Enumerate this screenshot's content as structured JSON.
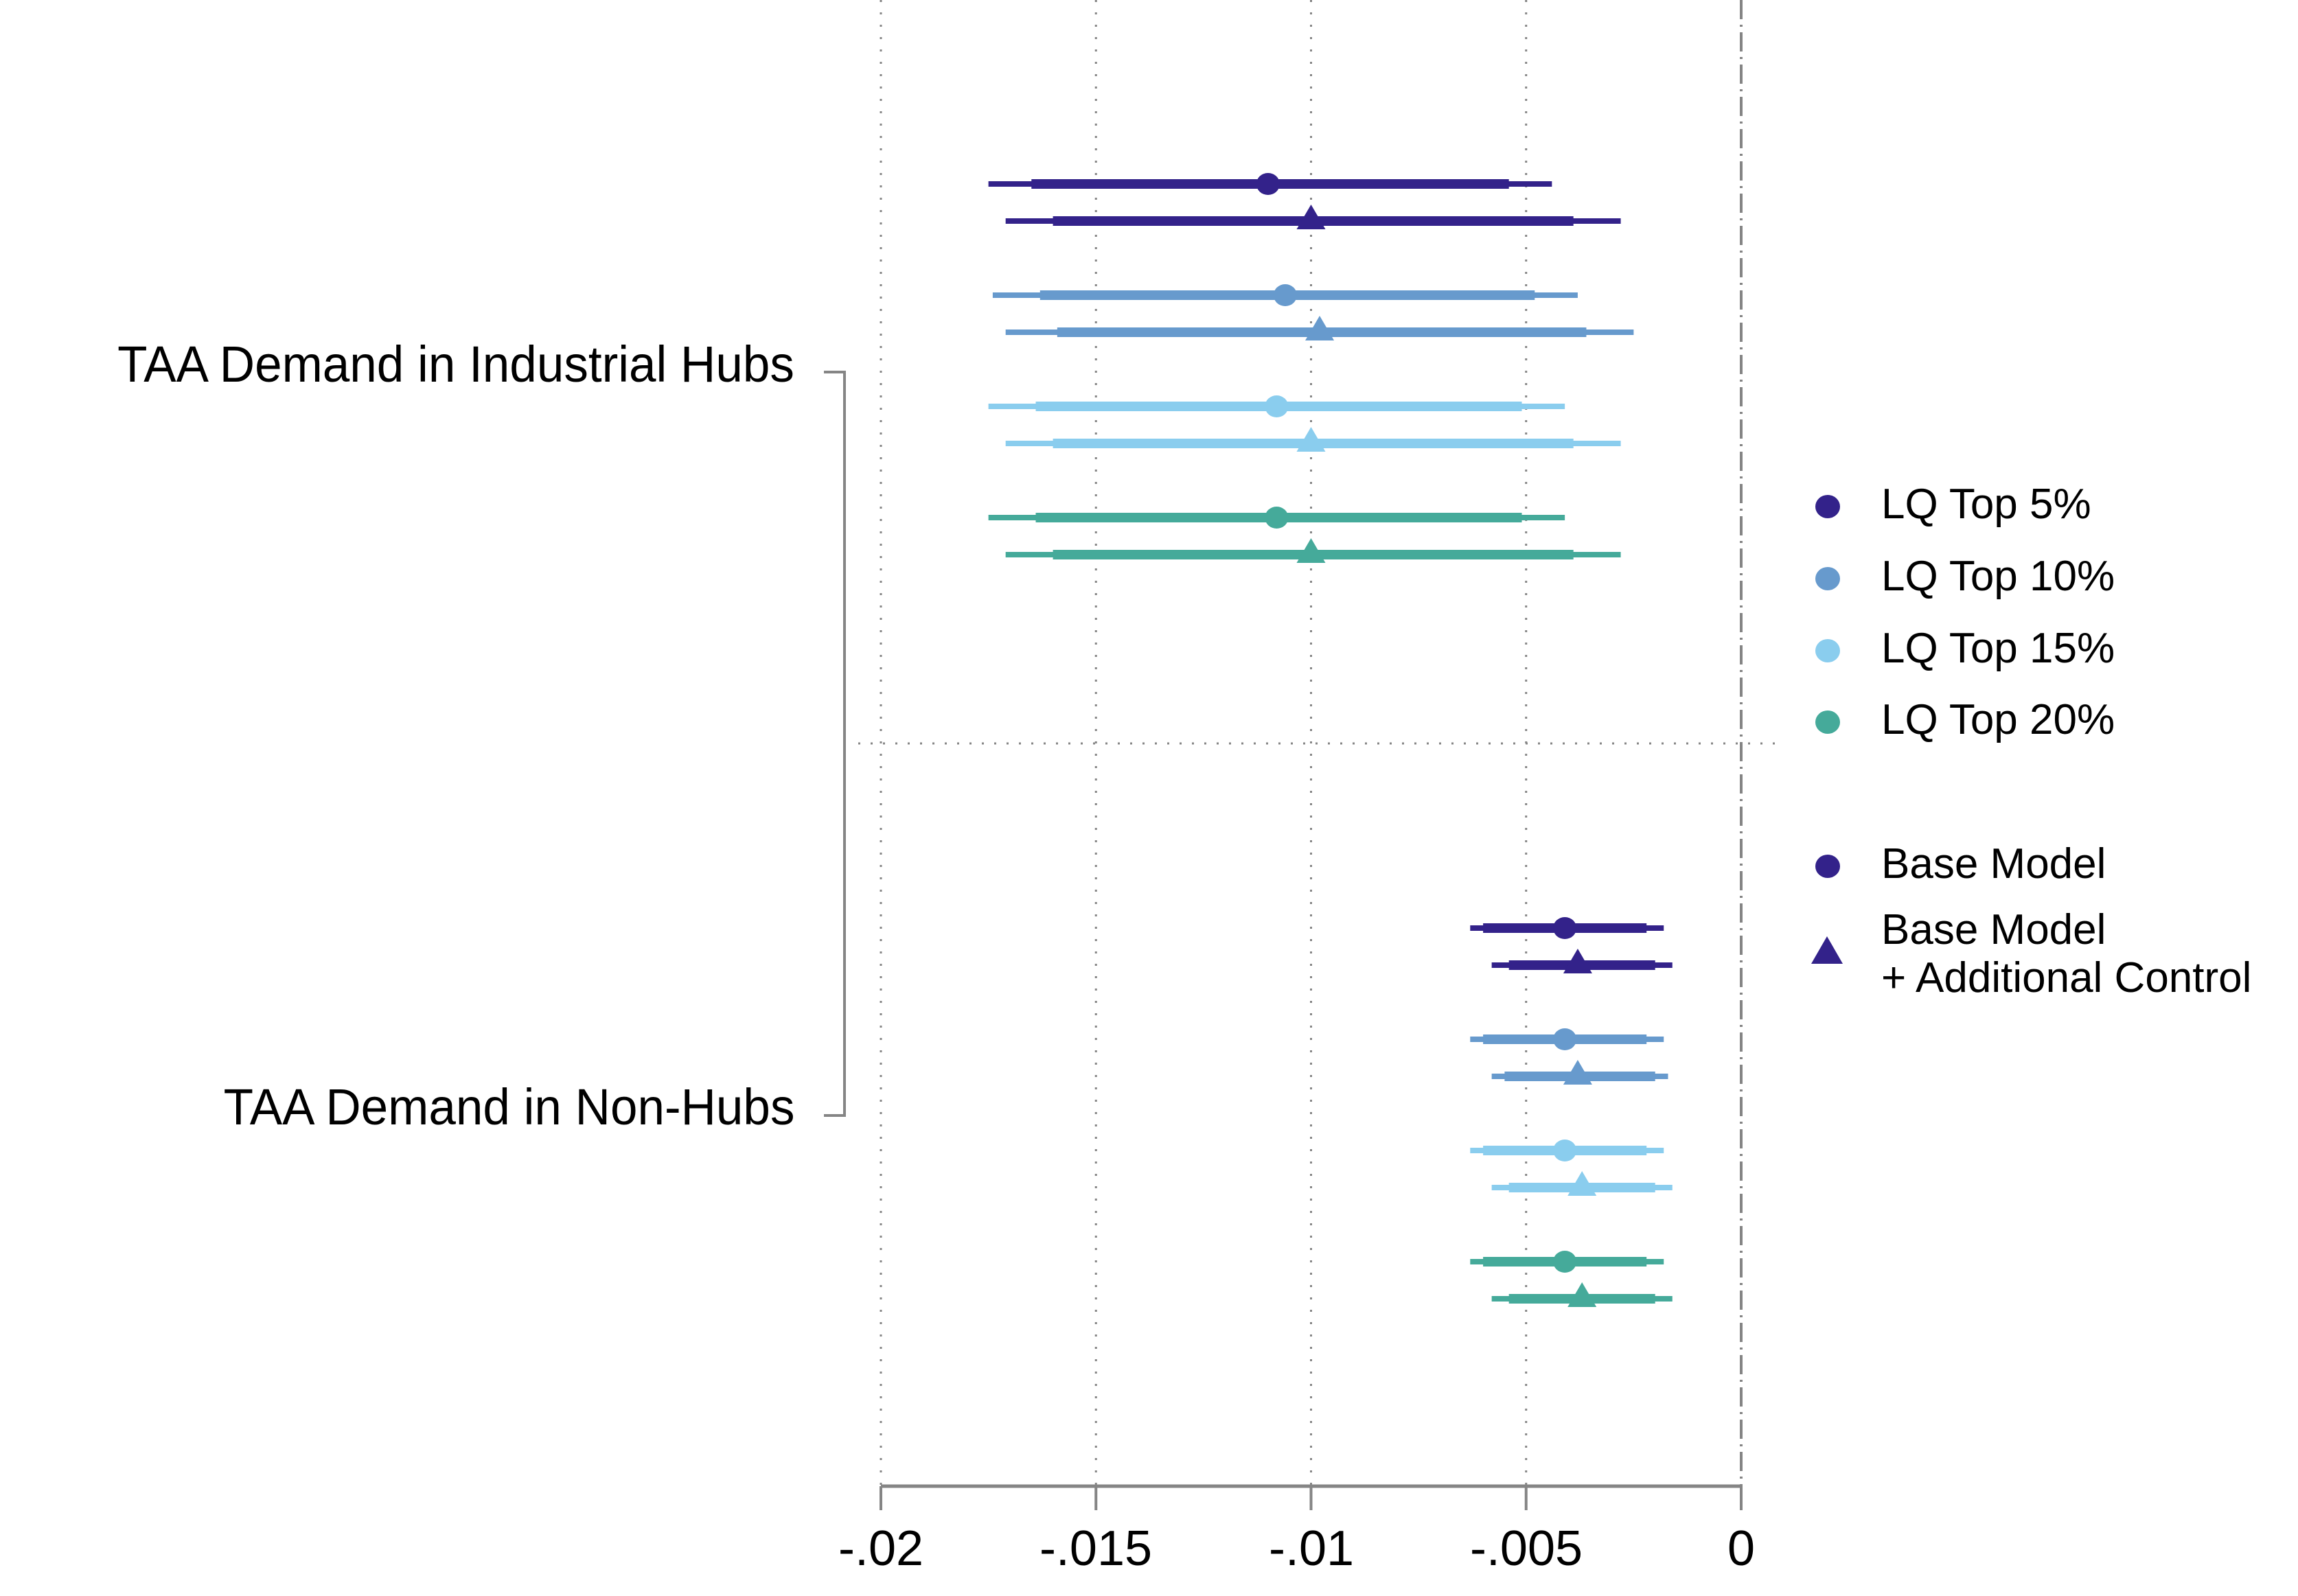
{
  "chart_data": {
    "type": "coefficient-plot",
    "title": "",
    "xlabel": "",
    "ylabel": "",
    "xlim": [
      -0.02,
      0.0
    ],
    "x_ticks": [
      -0.02,
      -0.015,
      -0.01,
      -0.005,
      0
    ],
    "x_tick_labels": [
      "-.02",
      "-.015",
      "-.01",
      "-.005",
      "0"
    ],
    "grid": "vertical dotted at ticks; dash-dot reference line at 0; horizontal dotted separator between groups",
    "legend_position": "right",
    "groups": [
      {
        "label": "TAA Demand in Industrial Hubs",
        "estimates": [
          {
            "series": "LQ Top 5%",
            "model": "Base Model",
            "coef": -0.011,
            "ci90": [
              -0.0165,
              -0.0054
            ],
            "ci95": [
              -0.0175,
              -0.0044
            ]
          },
          {
            "series": "LQ Top 5%",
            "model": "Base Model + Additional Control",
            "coef": -0.01,
            "ci90": [
              -0.016,
              -0.0039
            ],
            "ci95": [
              -0.0171,
              -0.0028
            ]
          },
          {
            "series": "LQ Top 10%",
            "model": "Base Model",
            "coef": -0.0106,
            "ci90": [
              -0.0163,
              -0.0048
            ],
            "ci95": [
              -0.0174,
              -0.0038
            ]
          },
          {
            "series": "LQ Top 10%",
            "model": "Base Model + Additional Control",
            "coef": -0.0098,
            "ci90": [
              -0.0159,
              -0.0036
            ],
            "ci95": [
              -0.0171,
              -0.0025
            ]
          },
          {
            "series": "LQ Top 15%",
            "model": "Base Model",
            "coef": -0.0108,
            "ci90": [
              -0.0164,
              -0.0051
            ],
            "ci95": [
              -0.0175,
              -0.0041
            ]
          },
          {
            "series": "LQ Top 15%",
            "model": "Base Model + Additional Control",
            "coef": -0.01,
            "ci90": [
              -0.016,
              -0.0039
            ],
            "ci95": [
              -0.0171,
              -0.0028
            ]
          },
          {
            "series": "LQ Top 20%",
            "model": "Base Model",
            "coef": -0.0108,
            "ci90": [
              -0.0164,
              -0.0051
            ],
            "ci95": [
              -0.0175,
              -0.0041
            ]
          },
          {
            "series": "LQ Top 20%",
            "model": "Base Model + Additional Control",
            "coef": -0.01,
            "ci90": [
              -0.016,
              -0.0039
            ],
            "ci95": [
              -0.0171,
              -0.0028
            ]
          }
        ]
      },
      {
        "label": "TAA Demand in Non-Hubs",
        "estimates": [
          {
            "series": "LQ Top 5%",
            "model": "Base Model",
            "coef": -0.0041,
            "ci90": [
              -0.006,
              -0.0022
            ],
            "ci95": [
              -0.0063,
              -0.0018
            ]
          },
          {
            "series": "LQ Top 5%",
            "model": "Base Model + Additional Control",
            "coef": -0.0038,
            "ci90": [
              -0.0054,
              -0.002
            ],
            "ci95": [
              -0.0058,
              -0.0016
            ]
          },
          {
            "series": "LQ Top 10%",
            "model": "Base Model",
            "coef": -0.0041,
            "ci90": [
              -0.006,
              -0.0022
            ],
            "ci95": [
              -0.0063,
              -0.0018
            ]
          },
          {
            "series": "LQ Top 10%",
            "model": "Base Model + Additional Control",
            "coef": -0.0038,
            "ci90": [
              -0.0055,
              -0.002
            ],
            "ci95": [
              -0.0058,
              -0.0017
            ]
          },
          {
            "series": "LQ Top 15%",
            "model": "Base Model",
            "coef": -0.0041,
            "ci90": [
              -0.006,
              -0.0022
            ],
            "ci95": [
              -0.0063,
              -0.0018
            ]
          },
          {
            "series": "LQ Top 15%",
            "model": "Base Model + Additional Control",
            "coef": -0.0037,
            "ci90": [
              -0.0054,
              -0.002
            ],
            "ci95": [
              -0.0058,
              -0.0016
            ]
          },
          {
            "series": "LQ Top 20%",
            "model": "Base Model",
            "coef": -0.0041,
            "ci90": [
              -0.006,
              -0.0022
            ],
            "ci95": [
              -0.0063,
              -0.0018
            ]
          },
          {
            "series": "LQ Top 20%",
            "model": "Base Model + Additional Control",
            "coef": -0.0037,
            "ci90": [
              -0.0054,
              -0.002
            ],
            "ci95": [
              -0.0058,
              -0.0016
            ]
          }
        ]
      }
    ],
    "series_colors": {
      "LQ Top 5%": "#33228a",
      "LQ Top 10%": "#679acd",
      "LQ Top 15%": "#8acdee",
      "LQ Top 20%": "#45aa9a"
    },
    "legend": {
      "series": [
        {
          "label": "LQ Top 5%",
          "color": "#33228a",
          "marker": "circle"
        },
        {
          "label": "LQ Top 10%",
          "color": "#679acd",
          "marker": "circle"
        },
        {
          "label": "LQ Top 15%",
          "color": "#8acdee",
          "marker": "circle"
        },
        {
          "label": "LQ Top 20%",
          "color": "#45aa9a",
          "marker": "circle"
        }
      ],
      "models": [
        {
          "label": "Base Model",
          "line2": "",
          "color": "#33228a",
          "marker": "circle"
        },
        {
          "label": "Base Model",
          "line2": "+ Additional Control",
          "color": "#33228a",
          "marker": "triangle"
        }
      ]
    }
  },
  "labels": {
    "group_hubs": "TAA Demand in Industrial Hubs",
    "group_nonhubs": "TAA Demand in Non-Hubs",
    "ticks": [
      "-.02",
      "-.015",
      "-.01",
      "-.005",
      "0"
    ],
    "legend_lq5": "LQ Top 5%",
    "legend_lq10": "LQ Top 10%",
    "legend_lq15": "LQ Top 15%",
    "legend_lq20": "LQ Top 20%",
    "legend_base": "Base Model",
    "legend_base_ctrl_1": "Base Model",
    "legend_base_ctrl_2": "+ Additional Control"
  }
}
